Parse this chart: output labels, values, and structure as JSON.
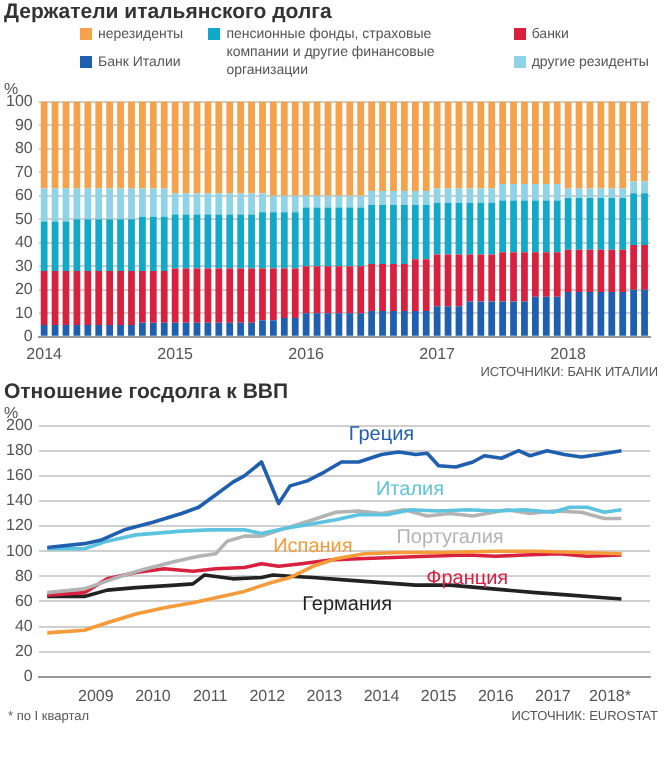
{
  "chart_data": [
    {
      "type": "bar",
      "title": "Держатели итальянского долга",
      "ylabel": "%",
      "stacked": true,
      "legend": "top",
      "grid": "y",
      "ylim": [
        0,
        100
      ],
      "yticks": [
        0,
        10,
        20,
        30,
        40,
        50,
        60,
        70,
        80,
        90,
        100
      ],
      "categories": [
        "2014",
        null,
        null,
        null,
        null,
        null,
        null,
        null,
        null,
        null,
        null,
        null,
        "2015",
        null,
        null,
        null,
        null,
        null,
        null,
        null,
        null,
        null,
        null,
        null,
        "2016",
        null,
        null,
        null,
        null,
        null,
        null,
        null,
        null,
        null,
        null,
        null,
        "2017",
        null,
        null,
        null,
        null,
        null,
        null,
        null,
        null,
        null,
        null,
        null,
        "2018",
        null,
        null,
        null,
        null,
        null,
        null,
        null
      ],
      "series": [
        {
          "name": "Банк Италии",
          "color": "#1f5fb0",
          "values": [
            5,
            5,
            5,
            5,
            5,
            5,
            5,
            5,
            5,
            6,
            6,
            6,
            6,
            6,
            6,
            6,
            6,
            6,
            6,
            6,
            7,
            7,
            8,
            8,
            10,
            10,
            10,
            10,
            10,
            10,
            11,
            11,
            11,
            11,
            11,
            11,
            13,
            13,
            13,
            15,
            15,
            15,
            15,
            15,
            15,
            17,
            17,
            17,
            19,
            19,
            19,
            19,
            19,
            19,
            20,
            20
          ]
        },
        {
          "name": "банки",
          "color": "#d8213f",
          "values": [
            23,
            23,
            23,
            23,
            23,
            23,
            23,
            23,
            23,
            22,
            22,
            22,
            23,
            23,
            23,
            23,
            23,
            23,
            23,
            23,
            22,
            22,
            21,
            21,
            20,
            20,
            20,
            20,
            20,
            20,
            20,
            20,
            20,
            20,
            22,
            22,
            22,
            22,
            22,
            20,
            20,
            20,
            21,
            21,
            21,
            19,
            19,
            19,
            18,
            18,
            18,
            18,
            18,
            18,
            19,
            19
          ]
        },
        {
          "name": "пенсионные фонды, страховые компании и другие финансовые организации",
          "color": "#12a8c8",
          "values": [
            21,
            21,
            21,
            22,
            22,
            22,
            22,
            22,
            22,
            23,
            23,
            23,
            23,
            23,
            23,
            23,
            23,
            23,
            23,
            23,
            24,
            24,
            24,
            24,
            25,
            25,
            25,
            25,
            25,
            25,
            25,
            25,
            25,
            25,
            23,
            23,
            22,
            22,
            22,
            22,
            22,
            22,
            22,
            22,
            22,
            22,
            22,
            22,
            22,
            22,
            22,
            22,
            22,
            22,
            22,
            22
          ]
        },
        {
          "name": "другие резиденты",
          "color": "#8fd3e6",
          "values": [
            14,
            14,
            14,
            13,
            13,
            13,
            13,
            13,
            13,
            12,
            12,
            12,
            9,
            9,
            9,
            9,
            9,
            9,
            9,
            9,
            8,
            7,
            7,
            7,
            5,
            5,
            5,
            5,
            5,
            5,
            6,
            6,
            6,
            6,
            6,
            6,
            6,
            6,
            6,
            6,
            6,
            6,
            7,
            7,
            7,
            7,
            7,
            7,
            4,
            4,
            4,
            4,
            4,
            4,
            5,
            5
          ]
        },
        {
          "name": "нерезиденты",
          "color": "#f5a24d",
          "values": [
            37,
            37,
            37,
            37,
            37,
            37,
            37,
            37,
            37,
            37,
            37,
            37,
            39,
            39,
            39,
            39,
            39,
            39,
            39,
            39,
            39,
            40,
            40,
            40,
            40,
            40,
            40,
            40,
            40,
            40,
            38,
            38,
            38,
            38,
            38,
            38,
            37,
            37,
            37,
            37,
            37,
            37,
            35,
            35,
            35,
            35,
            35,
            35,
            37,
            37,
            37,
            37,
            37,
            37,
            34,
            34
          ]
        }
      ],
      "annotations": [
        "ИСТОЧНИКИ: БАНК ИТАЛИИ"
      ]
    },
    {
      "type": "line",
      "title": "Отношение госдолга к ВВП",
      "ylabel": "%",
      "legend": false,
      "grid": "y",
      "xlim": [
        2008,
        2018.7
      ],
      "xticks": [
        2009,
        2010,
        2011,
        2012,
        2013,
        2014,
        2015,
        2016,
        2017,
        {
          "value": 2018,
          "label": "2018*"
        }
      ],
      "ylim": [
        0,
        200
      ],
      "yticks": [
        0,
        20,
        40,
        60,
        80,
        100,
        120,
        140,
        160,
        180,
        200
      ],
      "series": [
        {
          "name": "Греция",
          "color": "#1f5fb0",
          "x": [
            2008.15,
            2008.8,
            2009.1,
            2009.5,
            2010,
            2010.5,
            2010.8,
            2011.1,
            2011.4,
            2011.6,
            2011.9,
            2012.2,
            2012.4,
            2012.7,
            2013,
            2013.3,
            2013.6,
            2014,
            2014.3,
            2014.6,
            2014.8,
            2015,
            2015.3,
            2015.6,
            2015.8,
            2016.1,
            2016.4,
            2016.6,
            2016.9,
            2017.2,
            2017.5,
            2017.8,
            2018.2
          ],
          "values": [
            103,
            106,
            109,
            117,
            123,
            130,
            135,
            145,
            155,
            160,
            171,
            138,
            152,
            156,
            163,
            171,
            171,
            177,
            179,
            177,
            178,
            168,
            167,
            171,
            176,
            174,
            180,
            176,
            180,
            177,
            175,
            177,
            180
          ]
        },
        {
          "name": "Италия",
          "color": "#5cc3e0",
          "x": [
            2008.15,
            2008.8,
            2009.2,
            2009.7,
            2010.5,
            2011,
            2011.6,
            2011.9,
            2012.3,
            2012.7,
            2013.2,
            2013.6,
            2014.1,
            2014.5,
            2015,
            2015.5,
            2016,
            2016.5,
            2017,
            2017.3,
            2017.6,
            2017.9,
            2018.2
          ],
          "values": [
            102,
            102,
            108,
            113,
            116,
            117,
            117,
            114,
            118,
            121,
            125,
            129,
            129,
            133,
            132,
            133,
            132,
            133,
            131,
            135,
            135,
            131,
            133
          ]
        },
        {
          "name": "Португалия",
          "color": "#b3b3b3",
          "x": [
            2008.15,
            2008.8,
            2009.3,
            2009.8,
            2010.4,
            2010.8,
            2011.1,
            2011.3,
            2011.6,
            2011.9,
            2012.3,
            2012.8,
            2013.2,
            2013.6,
            2014,
            2014.4,
            2014.8,
            2015.2,
            2015.6,
            2016.2,
            2016.6,
            2017,
            2017.5,
            2017.9,
            2018.2
          ],
          "values": [
            67,
            70,
            78,
            85,
            92,
            96,
            98,
            108,
            112,
            112,
            118,
            125,
            131,
            132,
            130,
            133,
            128,
            130,
            128,
            133,
            130,
            132,
            131,
            126,
            126
          ]
        },
        {
          "name": "Испания",
          "color": "#f59b3a",
          "x": [
            2008.15,
            2008.8,
            2009.2,
            2009.7,
            2010.2,
            2010.7,
            2011.1,
            2011.6,
            2012,
            2012.4,
            2012.8,
            2013.2,
            2013.7,
            2014.3,
            2015,
            2016,
            2016.7,
            2017.5,
            2018.2
          ],
          "values": [
            35,
            37,
            43,
            50,
            55,
            59,
            63,
            68,
            74,
            79,
            88,
            94,
            98,
            99,
            99,
            100,
            100,
            99,
            98
          ]
        },
        {
          "name": "Франция",
          "color": "#d8213f",
          "x": [
            2008.15,
            2008.8,
            2009.2,
            2009.7,
            2010.2,
            2010.7,
            2011.1,
            2011.6,
            2011.9,
            2012.2,
            2012.6,
            2013.1,
            2013.6,
            2014.2,
            2014.8,
            2015.5,
            2016,
            2016.5,
            2017.1,
            2017.6,
            2018.2
          ],
          "values": [
            65,
            67,
            78,
            83,
            86,
            84,
            86,
            87,
            90,
            88,
            90,
            93,
            94,
            95,
            96,
            97,
            96,
            97,
            98,
            96,
            97
          ]
        },
        {
          "name": "Германия",
          "color": "#222222",
          "x": [
            2008.15,
            2008.8,
            2009.2,
            2009.7,
            2010.4,
            2010.7,
            2010.9,
            2011.4,
            2011.9,
            2012.1,
            2012.4,
            2012.8,
            2013.4,
            2014,
            2014.6,
            2015.2,
            2015.7,
            2016.2,
            2016.7,
            2017.3,
            2017.9,
            2018.2
          ],
          "values": [
            64,
            64,
            69,
            71,
            73,
            74,
            81,
            78,
            79,
            81,
            80,
            79,
            77,
            75,
            73,
            73,
            71,
            69,
            67,
            65,
            63,
            62
          ]
        }
      ],
      "annotations": [
        "* по I квартал",
        "ИСТОЧНИК: EUROSTAT"
      ]
    }
  ]
}
